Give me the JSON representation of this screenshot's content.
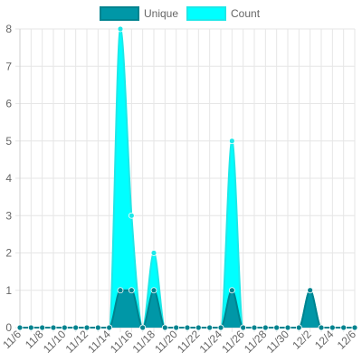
{
  "chart_data": {
    "type": "area",
    "categories": [
      "11/6",
      "11/7",
      "11/8",
      "11/9",
      "11/10",
      "11/11",
      "11/12",
      "11/13",
      "11/14",
      "11/15",
      "11/16",
      "11/17",
      "11/18",
      "11/19",
      "11/20",
      "11/21",
      "11/22",
      "11/23",
      "11/24",
      "11/25",
      "11/26",
      "11/27",
      "11/28",
      "11/29",
      "11/30",
      "12/1",
      "12/2",
      "12/3",
      "12/4",
      "12/5",
      "12/6"
    ],
    "x_tick_labels": [
      "11/6",
      "11/8",
      "11/10",
      "11/12",
      "11/14",
      "11/16",
      "11/18",
      "11/20",
      "11/22",
      "11/24",
      "11/26",
      "11/28",
      "11/30",
      "12/2",
      "12/4",
      "12/6"
    ],
    "y_tick_labels": [
      "0",
      "1",
      "2",
      "3",
      "4",
      "5",
      "6",
      "7",
      "8"
    ],
    "ylim": [
      0,
      8
    ],
    "grid": true,
    "legend_position": "top-center",
    "series": [
      {
        "name": "Count",
        "fill_color": "#00ffff",
        "line_color": "#1ee8e8",
        "values": [
          0,
          0,
          0,
          0,
          0,
          0,
          0,
          0,
          0,
          8,
          3,
          0,
          2,
          0,
          0,
          0,
          0,
          0,
          0,
          5,
          0,
          0,
          0,
          0,
          0,
          0,
          1,
          0,
          0,
          0,
          0
        ]
      },
      {
        "name": "Unique",
        "fill_color": "#0097a7",
        "line_color": "#00838f",
        "values": [
          0,
          0,
          0,
          0,
          0,
          0,
          0,
          0,
          0,
          1,
          1,
          0,
          1,
          0,
          0,
          0,
          0,
          0,
          0,
          1,
          0,
          0,
          0,
          0,
          0,
          0,
          1,
          0,
          0,
          0,
          0
        ]
      }
    ],
    "legend_order": [
      "Unique",
      "Count"
    ]
  }
}
